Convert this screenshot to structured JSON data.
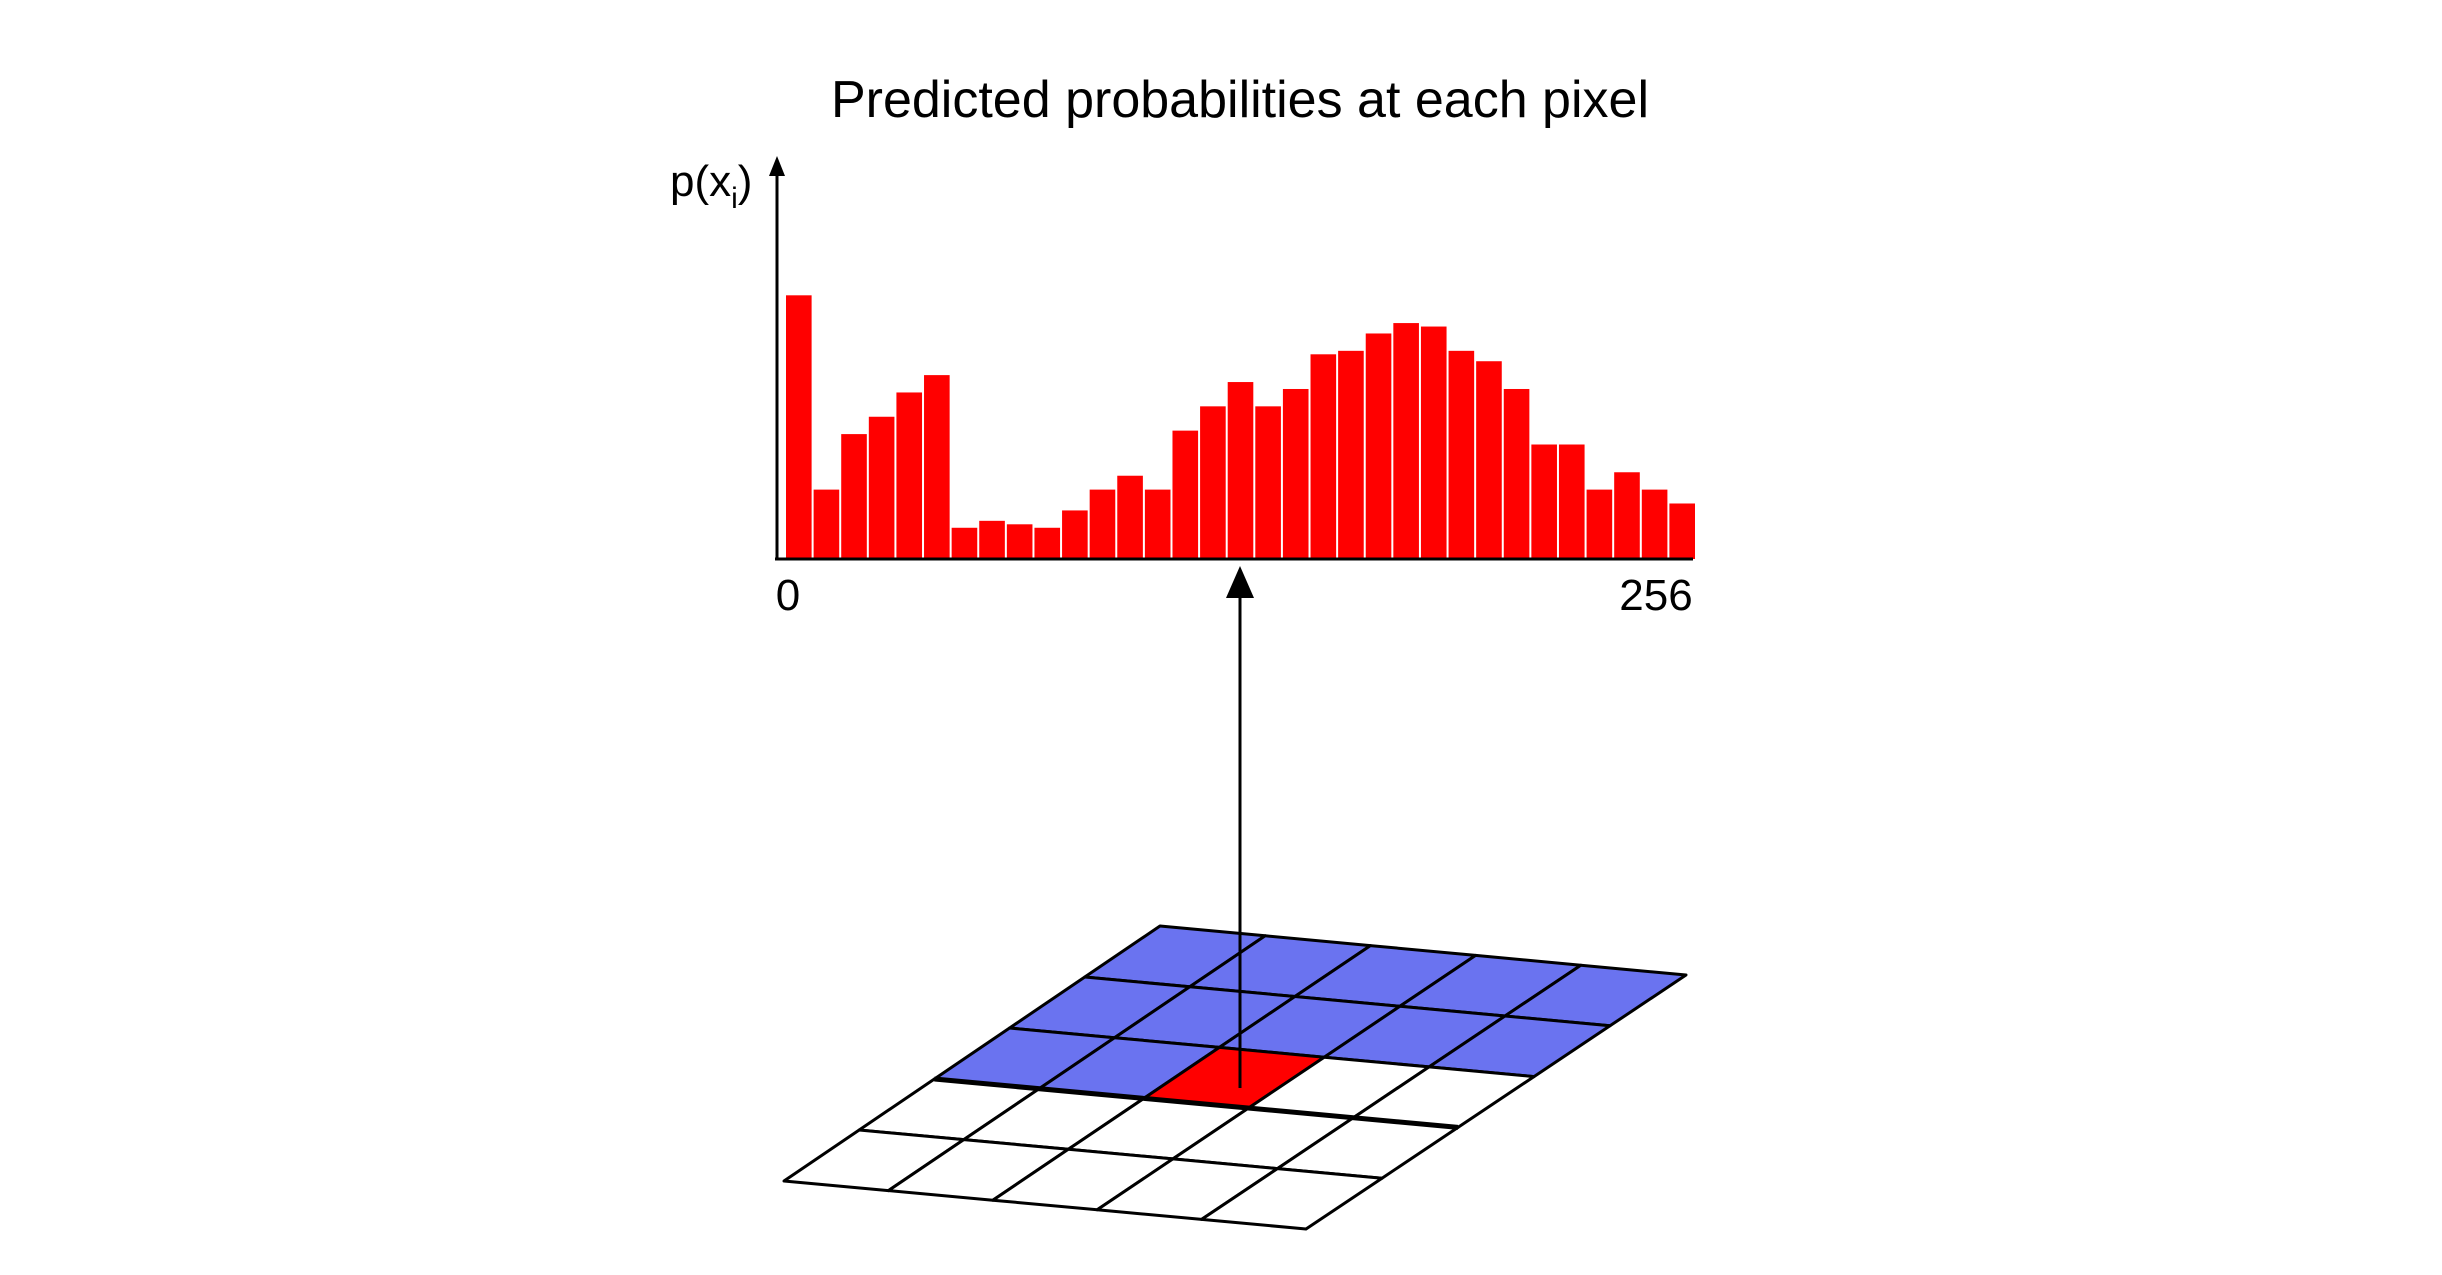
{
  "title": "Predicted probabilities at each pixel",
  "y_axis_label": {
    "base": "p(x",
    "subscript": "i",
    "close": ")"
  },
  "chart_data": {
    "type": "bar",
    "x_range": [
      0,
      256
    ],
    "x_tick_labels": [
      "0",
      "256"
    ],
    "bin_count": 33,
    "values": [
      0.76,
      0.2,
      0.36,
      0.41,
      0.48,
      0.53,
      0.09,
      0.11,
      0.1,
      0.09,
      0.14,
      0.2,
      0.24,
      0.2,
      0.37,
      0.44,
      0.51,
      0.44,
      0.49,
      0.59,
      0.6,
      0.65,
      0.68,
      0.67,
      0.6,
      0.57,
      0.49,
      0.33,
      0.33,
      0.2,
      0.25,
      0.2,
      0.16
    ],
    "ylim": [
      0,
      1.15
    ],
    "bar_color": "#ff0000",
    "selected_bin_index": 16
  },
  "grid": {
    "rows": 5,
    "cols": 5,
    "context_color": "#6a73f0",
    "current_color": "#ff0000",
    "empty_color": "#ffffff",
    "current_pixel": {
      "row": 2,
      "col": 2
    }
  },
  "colors": {
    "line": "#000000",
    "background": "#ffffff"
  }
}
